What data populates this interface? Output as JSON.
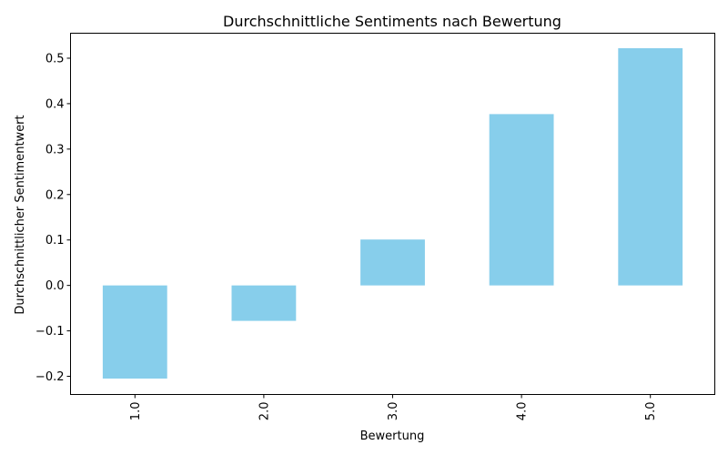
{
  "chart_data": {
    "type": "bar",
    "title": "Durchschnittliche Sentiments nach Bewertung",
    "xlabel": "Bewertung",
    "ylabel": "Durchschnittlicher Sentimentwert",
    "categories": [
      "1.0",
      "2.0",
      "3.0",
      "4.0",
      "5.0"
    ],
    "values": [
      -0.205,
      -0.078,
      0.101,
      0.377,
      0.522
    ],
    "ylim": [
      -0.24,
      0.555
    ],
    "yticks": [
      -0.2,
      -0.1,
      0.0,
      0.1,
      0.2,
      0.3,
      0.4,
      0.5
    ],
    "ytick_labels": [
      "−0.2",
      "−0.1",
      "0.0",
      "0.1",
      "0.2",
      "0.3",
      "0.4",
      "0.5"
    ],
    "bar_color": "#87ceeb",
    "grid": false,
    "legend": "none"
  }
}
